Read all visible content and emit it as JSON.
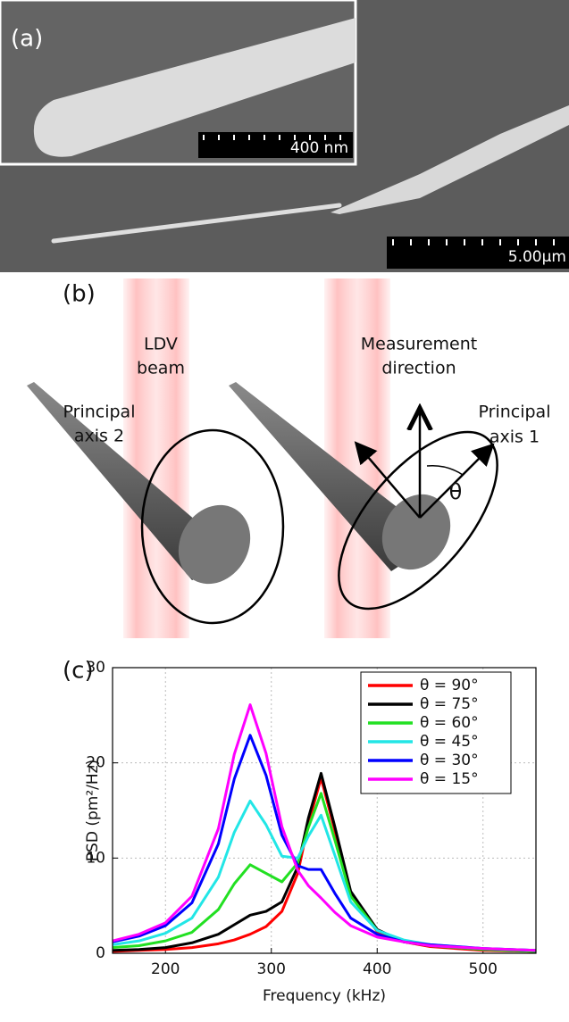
{
  "panel_a": {
    "label": "(a)",
    "scale_bar_inset": "400 nm",
    "scale_bar_main": "5.00µm"
  },
  "panel_b": {
    "label": "(b)",
    "ldv_beam": [
      "LDV",
      "beam"
    ],
    "measurement_direction": [
      "Measurement",
      "direction"
    ],
    "principal_axis_2": [
      "Principal",
      "axis 2"
    ],
    "principal_axis_1": [
      "Principal",
      "axis 1"
    ],
    "theta": "θ"
  },
  "panel_c": {
    "label": "(c)"
  },
  "chart_data": {
    "type": "line",
    "xlabel": "Frequency (kHz)",
    "ylabel": "PSD (pm²/Hz)",
    "x": [
      150,
      175,
      200,
      225,
      250,
      265,
      280,
      295,
      310,
      325,
      335,
      347,
      360,
      375,
      400,
      425,
      450,
      500,
      550
    ],
    "xlim": [
      150,
      550
    ],
    "xticks": [
      200,
      300,
      400,
      500
    ],
    "ylim": [
      0,
      30
    ],
    "yticks": [
      0,
      10,
      20,
      30
    ],
    "grid": true,
    "legend": "upper right",
    "series": [
      {
        "name": "θ = 90°",
        "color": "#ff0000",
        "values": [
          0.2,
          0.3,
          0.4,
          0.6,
          1.0,
          1.4,
          2.0,
          2.8,
          4.4,
          8.4,
          13.6,
          18.4,
          12.9,
          6.2,
          2.3,
          1.2,
          0.7,
          0.3,
          0.2
        ]
      },
      {
        "name": "θ = 75°",
        "color": "#000000",
        "values": [
          0.3,
          0.4,
          0.6,
          1.1,
          2.0,
          3.0,
          4.0,
          4.4,
          5.4,
          9.1,
          14.2,
          18.9,
          13.3,
          6.5,
          2.5,
          1.2,
          0.8,
          0.4,
          0.2
        ]
      },
      {
        "name": "θ = 60°",
        "color": "#22e022",
        "values": [
          0.6,
          0.8,
          1.3,
          2.2,
          4.6,
          7.3,
          9.3,
          8.4,
          7.5,
          9.5,
          13.2,
          16.8,
          11.9,
          6.0,
          2.4,
          1.3,
          0.8,
          0.4,
          0.2
        ]
      },
      {
        "name": "θ = 45°",
        "color": "#22e6e6",
        "values": [
          0.9,
          1.3,
          2.1,
          3.7,
          8.0,
          12.7,
          16.0,
          13.5,
          10.2,
          10.0,
          12.3,
          14.5,
          10.3,
          5.4,
          2.4,
          1.4,
          0.9,
          0.5,
          0.3
        ]
      },
      {
        "name": "θ = 30°",
        "color": "#0000ff",
        "values": [
          1.2,
          1.8,
          2.9,
          5.3,
          11.5,
          18.3,
          22.9,
          18.7,
          12.4,
          9.2,
          8.8,
          8.8,
          6.3,
          3.7,
          2.0,
          1.2,
          0.9,
          0.5,
          0.3
        ]
      },
      {
        "name": "θ = 15°",
        "color": "#ff00ff",
        "values": [
          1.3,
          2.0,
          3.2,
          6.0,
          13.1,
          20.9,
          26.1,
          21.0,
          13.3,
          8.7,
          7.1,
          5.8,
          4.3,
          2.9,
          1.7,
          1.2,
          0.8,
          0.5,
          0.3
        ]
      }
    ]
  }
}
